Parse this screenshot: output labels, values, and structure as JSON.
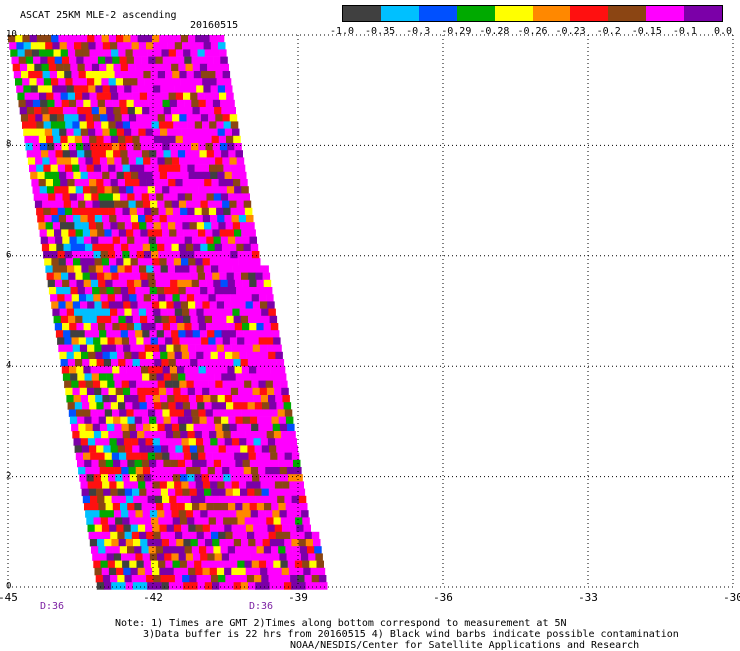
{
  "header": {
    "title": "ASCAT 25KM MLE-2 ascending",
    "date": "20160515"
  },
  "colorbar": {
    "colors": [
      "#404040",
      "#00c0ff",
      "#0050ff",
      "#00aa00",
      "#ffff00",
      "#ff8800",
      "#ff1010",
      "#8b4513",
      "#ff00ff",
      "#7b00a8"
    ],
    "labels": [
      "-1.0",
      "-0.35",
      "-0.3",
      "-0.29",
      "-0.28",
      "-0.26",
      "-0.23",
      "-0.2",
      "-0.15",
      "-0.1",
      "0.0"
    ]
  },
  "chart_data": {
    "type": "heatmap",
    "x_ticks": [
      "-45",
      "-42",
      "-39",
      "-36",
      "-33",
      "-30"
    ],
    "y_ticks": [
      "0",
      "2",
      "4",
      "6",
      "8",
      "10"
    ],
    "xlim": [
      -45,
      -30
    ],
    "ylim": [
      0,
      10
    ],
    "swath_times": [
      "D:36",
      "D:36"
    ]
  },
  "notes": {
    "line1": "Note: 1) Times are GMT 2)Times along bottom correspond to measurement at 5N",
    "line2": "3)Data buffer is 22 hrs from 20160515 4) Black wind barbs indicate possible contamination",
    "line3": "NOAA/NESDIS/Center for Satellite Applications and Research"
  }
}
